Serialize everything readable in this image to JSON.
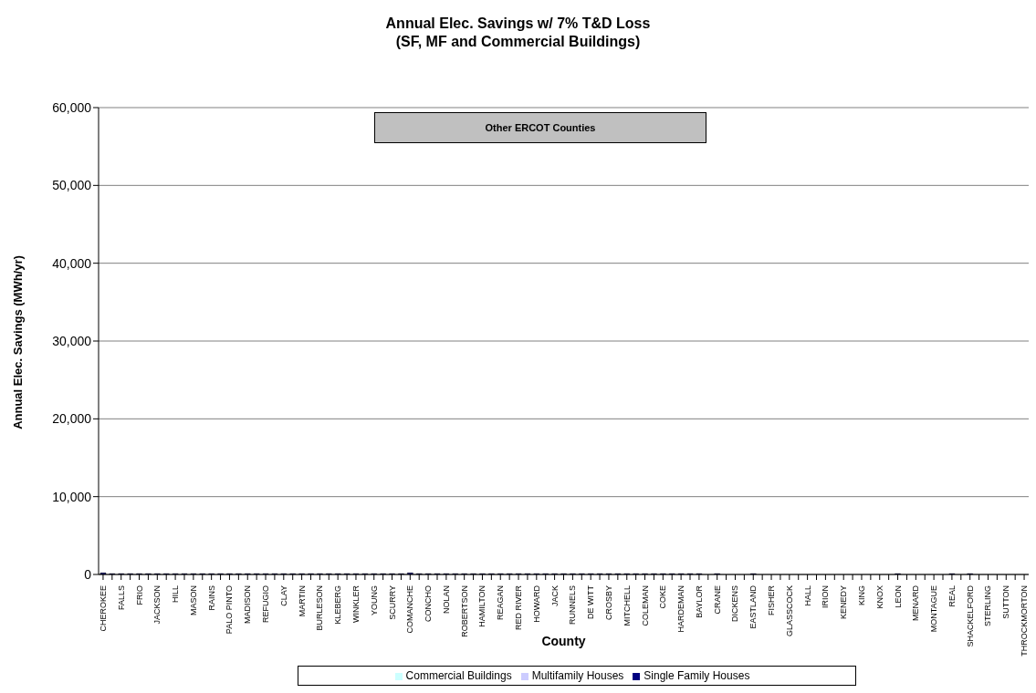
{
  "chart_data": {
    "type": "bar",
    "title": "Annual Elec. Savings w/ 7% T&D Loss",
    "subtitle": "(SF, MF and Commercial Buildings)",
    "xlabel": "County",
    "ylabel": "Annual Elec. Savings (MWh/yr)",
    "annotations": [
      "Other ERCOT Counties"
    ],
    "categories": [
      "CHEROKEE",
      null,
      "FALLS",
      null,
      "FRIO",
      null,
      "JACKSON",
      null,
      "HILL",
      null,
      "MASON",
      null,
      "RAINS",
      null,
      "PALO PINTO",
      null,
      "MADISON",
      null,
      "REFUGIO",
      null,
      "CLAY",
      null,
      "MARTIN",
      null,
      "BURLESON",
      null,
      "KLEBERG",
      null,
      "WINKLER",
      null,
      "YOUNG",
      null,
      "SCURRY",
      null,
      "COMANCHE",
      null,
      "CONCHO",
      null,
      "NOLAN",
      null,
      "ROBERTSON",
      null,
      "HAMILTON",
      null,
      "REAGAN",
      null,
      "RED RIVER",
      null,
      "HOWARD",
      null,
      "JACK",
      null,
      "RUNNELS",
      null,
      "DE WITT",
      null,
      "CROSBY",
      null,
      "MITCHELL",
      null,
      "COLEMAN",
      null,
      "COKE",
      null,
      "HARDEMAN",
      null,
      "BAYLOR",
      null,
      "CRANE",
      null,
      "DICKENS",
      null,
      "EASTLAND",
      null,
      "FISHER",
      null,
      "GLASSCOCK",
      null,
      "HALL",
      null,
      "IRION",
      null,
      "KENEDY",
      null,
      "KING",
      null,
      "KNOX",
      null,
      "LEON",
      null,
      "MENARD",
      null,
      "MONTAGUE",
      null,
      "REAL",
      null,
      "SHACKELFORD",
      null,
      "STERLING",
      null,
      "SUTTON",
      null,
      "THROCKMORTON"
    ],
    "series": [
      {
        "name": "Single Family Houses",
        "color": "#000080",
        "values": [
          200,
          100,
          100,
          100,
          100,
          100,
          100,
          100,
          100,
          100,
          100,
          100,
          100,
          100,
          100,
          100,
          100,
          100,
          100,
          100,
          100,
          100,
          100,
          100,
          100,
          100,
          100,
          100,
          100,
          100,
          100,
          100,
          100,
          100,
          200,
          100,
          100,
          100,
          100,
          100,
          100,
          100,
          100,
          100,
          100,
          100,
          100,
          100,
          100,
          100,
          100,
          100,
          100,
          100,
          100,
          100,
          100,
          100,
          100,
          100,
          100,
          100,
          100,
          100,
          100,
          100,
          100,
          0,
          100,
          0,
          0,
          0,
          100,
          0,
          0,
          0,
          0,
          0,
          0,
          0,
          0,
          0,
          0,
          0,
          0,
          0,
          0,
          0,
          100,
          0,
          0,
          0,
          0,
          0,
          100,
          0,
          100,
          0,
          0,
          0,
          0,
          0,
          0
        ]
      },
      {
        "name": "Multifamily Houses",
        "color": "#ccccff",
        "values": [
          0,
          0,
          0,
          0,
          0,
          0,
          0,
          0,
          0,
          0,
          0,
          0,
          0,
          0,
          0,
          0,
          0,
          0,
          0,
          0,
          0,
          0,
          0,
          0,
          0,
          0,
          0,
          0,
          0,
          0,
          0,
          0,
          0,
          0,
          0,
          0,
          0,
          0,
          0,
          0,
          0,
          0,
          0,
          0,
          0,
          0,
          0,
          0,
          0,
          0,
          0,
          0,
          0,
          0,
          0,
          0,
          0,
          0,
          0,
          0,
          0,
          0,
          0,
          0,
          0,
          0,
          0,
          0,
          0,
          0,
          0,
          0,
          0,
          0,
          0,
          0,
          0,
          0,
          0,
          0,
          0,
          0,
          0,
          0,
          0,
          0,
          0,
          0,
          0,
          0,
          0,
          0,
          0,
          0,
          0,
          0,
          0,
          0,
          0,
          0,
          0,
          0,
          0
        ]
      },
      {
        "name": "Commercial Buildings",
        "color": "#ccffff",
        "values": [
          0,
          0,
          0,
          0,
          0,
          0,
          0,
          0,
          0,
          0,
          0,
          0,
          0,
          0,
          0,
          0,
          0,
          0,
          0,
          0,
          0,
          0,
          0,
          0,
          0,
          0,
          0,
          0,
          0,
          0,
          0,
          0,
          0,
          0,
          0,
          0,
          0,
          0,
          0,
          0,
          0,
          0,
          0,
          0,
          0,
          0,
          0,
          0,
          0,
          0,
          0,
          0,
          0,
          0,
          0,
          0,
          0,
          0,
          0,
          0,
          0,
          0,
          0,
          0,
          0,
          0,
          0,
          0,
          0,
          0,
          0,
          0,
          0,
          0,
          0,
          0,
          0,
          0,
          0,
          0,
          0,
          0,
          0,
          0,
          0,
          0,
          0,
          0,
          0,
          0,
          0,
          0,
          0,
          0,
          0,
          0,
          0,
          0,
          0,
          0,
          0,
          0,
          0
        ]
      }
    ],
    "stacked": true,
    "ylim": [
      0,
      60000
    ],
    "yticks": [
      0,
      {
        "value": 10000,
        "label": "10,000"
      },
      {
        "value": 20000,
        "label": "20,000"
      },
      {
        "value": 30000,
        "label": "30,000"
      },
      {
        "value": 40000,
        "label": "40,000"
      },
      {
        "value": 50000,
        "label": "50,000"
      },
      {
        "value": 60000,
        "label": "60,000"
      }
    ],
    "grid": "y",
    "legend": "bottom"
  }
}
